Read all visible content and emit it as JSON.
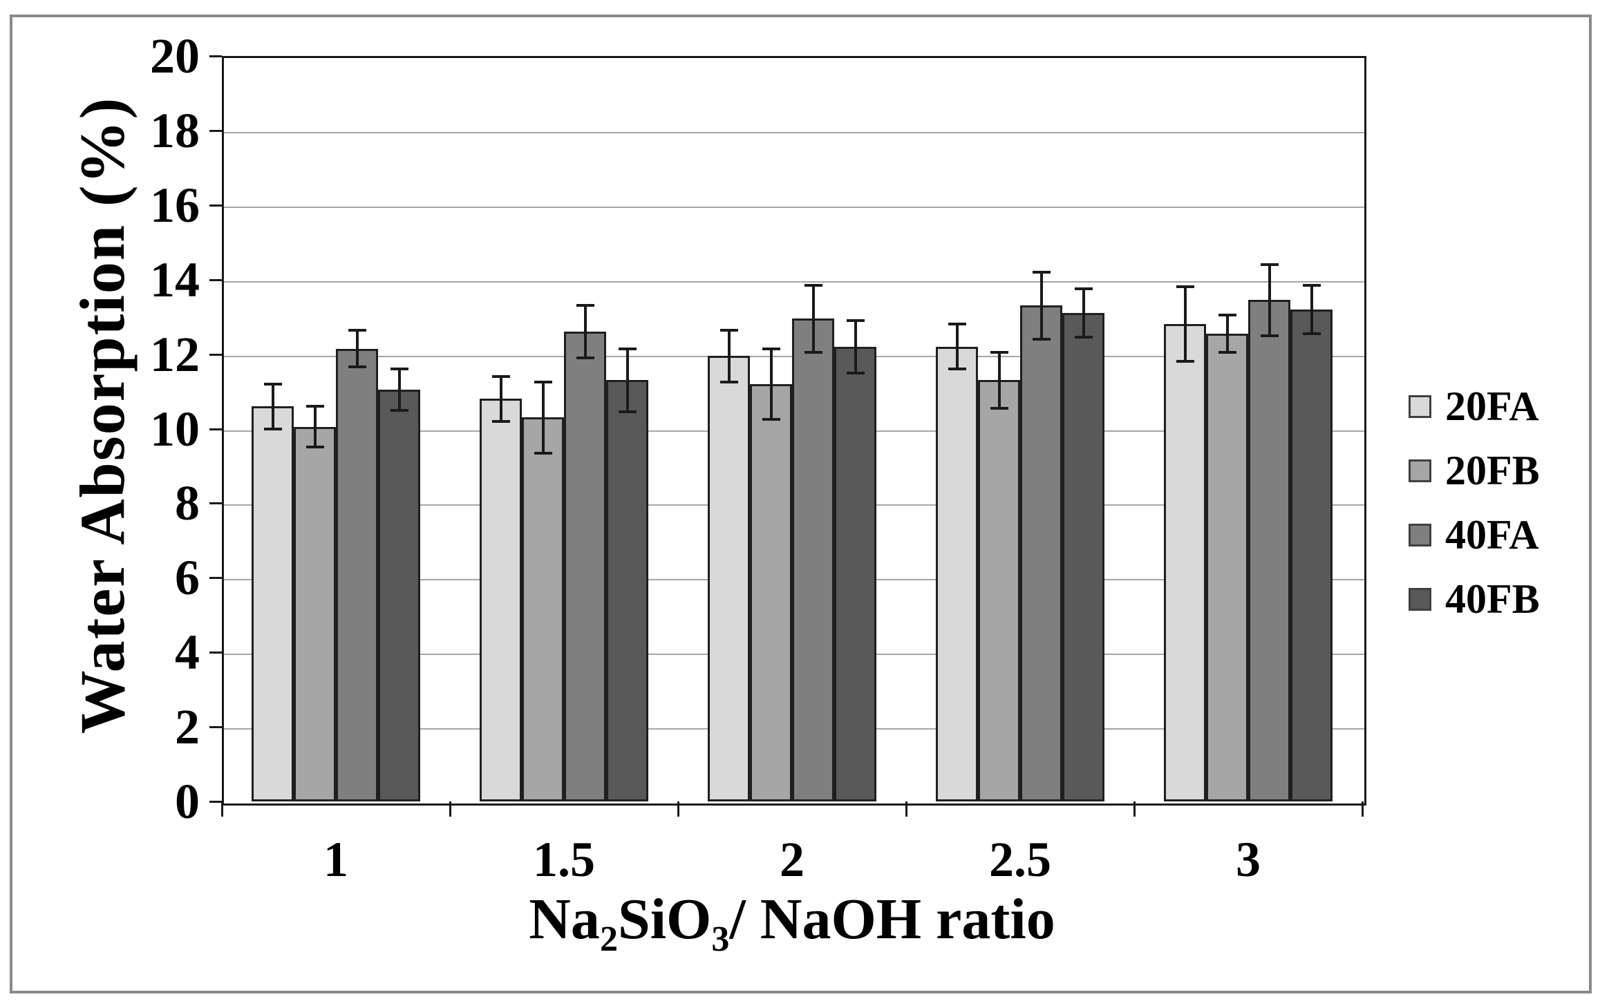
{
  "figure": {
    "background": "#ffffff",
    "frame_color": "#8a8a8a"
  },
  "chart_data": {
    "type": "bar",
    "title": "",
    "ylabel": "Water Absorption (%)",
    "xlabel_plain": "Na2SiO3/ NaOH ratio",
    "xlabel_parts": [
      {
        "text": "Na"
      },
      {
        "text": "2",
        "sub": true
      },
      {
        "text": "SiO"
      },
      {
        "text": "3",
        "sub": true
      },
      {
        "text": "/ NaOH ratio"
      }
    ],
    "ylim": [
      0,
      20
    ],
    "ytick_step": 2,
    "ytick_labels": [
      "0",
      "2",
      "4",
      "6",
      "8",
      "10",
      "12",
      "14",
      "16",
      "18",
      "20"
    ],
    "categories": [
      "1",
      "1.5",
      "2",
      "2.5",
      "3"
    ],
    "grid": "horizontal",
    "legend_position": "right",
    "error_bars": true,
    "series": [
      {
        "name": "20FA",
        "color": "#d9d9d9",
        "values": [
          10.6,
          10.8,
          11.95,
          12.2,
          12.8
        ],
        "errors": [
          0.6,
          0.6,
          0.7,
          0.6,
          1.0
        ]
      },
      {
        "name": "20FB",
        "color": "#a6a6a6",
        "values": [
          10.05,
          10.3,
          11.2,
          11.3,
          12.55
        ],
        "errors": [
          0.55,
          0.95,
          0.95,
          0.75,
          0.5
        ]
      },
      {
        "name": "40FA",
        "color": "#7f7f7f",
        "values": [
          12.15,
          12.6,
          12.95,
          13.3,
          13.45
        ],
        "errors": [
          0.5,
          0.7,
          0.9,
          0.9,
          0.95
        ]
      },
      {
        "name": "40FB",
        "color": "#595959",
        "values": [
          11.05,
          11.3,
          12.2,
          13.1,
          13.2
        ],
        "errors": [
          0.55,
          0.85,
          0.7,
          0.65,
          0.65
        ]
      }
    ]
  }
}
